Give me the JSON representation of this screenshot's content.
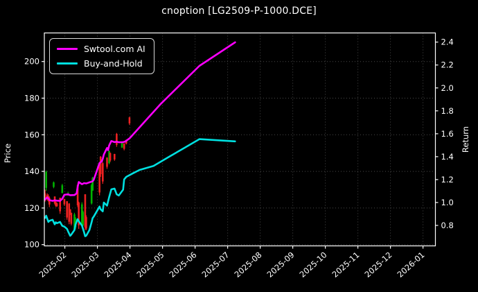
{
  "title": "cnoption [LG2509-P-1000.DCE]",
  "legend": {
    "items": [
      {
        "label": "Swtool.com AI",
        "color": "#ff00ff"
      },
      {
        "label": "Buy-and-Hold",
        "color": "#00e0e0"
      }
    ]
  },
  "colors": {
    "background": "#000000",
    "foreground": "#ffffff",
    "grid": "#4a4a4a",
    "candle_up": "#00b300",
    "candle_down": "#ee2222",
    "ai_line": "#ff00ff",
    "hold_line": "#00e0e0"
  },
  "chart_data": {
    "type": "line+candlestick",
    "title": "cnoption [LG2509-P-1000.DCE]",
    "ylabel_left": "Price",
    "ylabel_right": "Return",
    "grid": "dotted",
    "legend_position": "upper-left",
    "x_tick_labels": [
      "2025-02",
      "2025-03",
      "2025-04",
      "2025-05",
      "2025-06",
      "2025-07",
      "2025-08",
      "2025-09",
      "2025-10",
      "2025-11",
      "2025-12",
      "2026-01"
    ],
    "price_ticks": [
      100,
      120,
      140,
      160,
      180,
      200
    ],
    "return_ticks": [
      0.8,
      1.0,
      1.2,
      1.4,
      1.6,
      1.8,
      2.0,
      2.2,
      2.4
    ],
    "series": [
      {
        "name": "Swtool.com AI",
        "color": "#ff00ff",
        "points": [
          [
            "2025-01-13",
            124.6
          ],
          [
            "2025-01-14",
            125.3
          ],
          [
            "2025-01-15",
            125.8
          ],
          [
            "2025-01-16",
            125.2
          ],
          [
            "2025-01-17",
            124.3
          ],
          [
            "2025-01-20",
            123.9
          ],
          [
            "2025-01-22",
            124.2
          ],
          [
            "2025-01-24",
            124.0
          ],
          [
            "2025-01-27",
            123.9
          ],
          [
            "2025-01-29",
            125.0
          ],
          [
            "2025-01-31",
            127.2
          ],
          [
            "2025-02-04",
            127.5
          ],
          [
            "2025-02-06",
            127.0
          ],
          [
            "2025-02-10",
            127.1
          ],
          [
            "2025-02-12",
            128.0
          ],
          [
            "2025-02-13",
            131.5
          ],
          [
            "2025-02-14",
            134.2
          ],
          [
            "2025-02-17",
            133.0
          ],
          [
            "2025-02-19",
            133.6
          ],
          [
            "2025-02-21",
            133.4
          ],
          [
            "2025-02-25",
            134.2
          ],
          [
            "2025-02-27",
            134.6
          ],
          [
            "2025-02-28",
            135.4
          ],
          [
            "2025-03-03",
            144.6
          ],
          [
            "2025-03-05",
            145.4
          ],
          [
            "2025-03-06",
            146.8
          ],
          [
            "2025-03-07",
            149.2
          ],
          [
            "2025-03-10",
            152.8
          ],
          [
            "2025-03-11",
            151.6
          ],
          [
            "2025-03-12",
            154.2
          ],
          [
            "2025-03-14",
            156.6
          ],
          [
            "2025-03-17",
            156.0
          ],
          [
            "2025-03-19",
            156.2
          ],
          [
            "2025-03-21",
            155.9
          ],
          [
            "2025-03-25",
            156.0
          ],
          [
            "2025-03-27",
            156.3
          ],
          [
            "2025-03-31",
            158.0
          ],
          [
            "2025-04-30",
            177.0
          ],
          [
            "2025-06-05",
            197.6
          ],
          [
            "2025-07-08",
            210.5
          ]
        ]
      },
      {
        "name": "Buy-and-Hold",
        "color": "#00e0e0",
        "points": [
          [
            "2025-01-13",
            114.6
          ],
          [
            "2025-01-14",
            115.8
          ],
          [
            "2025-01-16",
            112.4
          ],
          [
            "2025-01-17",
            113.0
          ],
          [
            "2025-01-20",
            113.6
          ],
          [
            "2025-01-22",
            111.1
          ],
          [
            "2025-01-23",
            112.2
          ],
          [
            "2025-01-24",
            111.7
          ],
          [
            "2025-01-27",
            112.4
          ],
          [
            "2025-01-29",
            110.3
          ],
          [
            "2025-01-31",
            109.8
          ],
          [
            "2025-02-03",
            108.6
          ],
          [
            "2025-02-04",
            107.3
          ],
          [
            "2025-02-06",
            104.8
          ],
          [
            "2025-02-07",
            105.5
          ],
          [
            "2025-02-10",
            108.0
          ],
          [
            "2025-02-11",
            111.0
          ],
          [
            "2025-02-13",
            113.9
          ],
          [
            "2025-02-14",
            112.8
          ],
          [
            "2025-02-17",
            110.4
          ],
          [
            "2025-02-19",
            106.7
          ],
          [
            "2025-02-20",
            104.6
          ],
          [
            "2025-02-21",
            104.9
          ],
          [
            "2025-02-24",
            108.0
          ],
          [
            "2025-02-26",
            112.2
          ],
          [
            "2025-02-27",
            114.5
          ],
          [
            "2025-02-28",
            115.3
          ],
          [
            "2025-03-03",
            120.8
          ],
          [
            "2025-03-04",
            119.3
          ],
          [
            "2025-03-06",
            118.2
          ],
          [
            "2025-03-07",
            123.0
          ],
          [
            "2025-03-10",
            121.3
          ],
          [
            "2025-03-12",
            126.0
          ],
          [
            "2025-03-14",
            130.2
          ],
          [
            "2025-03-17",
            130.6
          ],
          [
            "2025-03-19",
            127.5
          ],
          [
            "2025-03-21",
            126.8
          ],
          [
            "2025-03-25",
            130.0
          ],
          [
            "2025-03-26",
            135.6
          ],
          [
            "2025-03-28",
            137.0
          ],
          [
            "2025-04-04",
            139.0
          ],
          [
            "2025-04-10",
            140.8
          ],
          [
            "2025-04-23",
            143.0
          ],
          [
            "2025-05-08",
            148.3
          ],
          [
            "2025-05-22",
            153.0
          ],
          [
            "2025-06-05",
            157.6
          ],
          [
            "2025-07-08",
            156.4
          ]
        ]
      }
    ],
    "candles": [
      {
        "d": "2025-01-13",
        "o": 128.0,
        "h": 130.0,
        "l": 123.5,
        "c": 124.5
      },
      {
        "d": "2025-01-14",
        "o": 131.0,
        "h": 140.4,
        "l": 129.4,
        "c": 139.8
      },
      {
        "d": "2025-01-15",
        "o": 127.0,
        "h": 128.0,
        "l": 124.0,
        "c": 125.0
      },
      {
        "d": "2025-01-16",
        "o": 126.5,
        "h": 127.5,
        "l": 123.5,
        "c": 124.2
      },
      {
        "d": "2025-01-17",
        "o": 125.6,
        "h": 126.3,
        "l": 120.5,
        "c": 121.9
      },
      {
        "d": "2025-01-21",
        "o": 131.5,
        "h": 134.5,
        "l": 130.8,
        "c": 134.0
      },
      {
        "d": "2025-01-22",
        "o": 126.3,
        "h": 126.3,
        "l": 121.9,
        "c": 122.5
      },
      {
        "d": "2025-01-23",
        "o": 123.1,
        "h": 123.5,
        "l": 120.6,
        "c": 121.2
      },
      {
        "d": "2025-01-24",
        "o": 122.5,
        "h": 123.0,
        "l": 120.6,
        "c": 121.0
      },
      {
        "d": "2025-01-27",
        "o": 125.6,
        "h": 125.6,
        "l": 116.8,
        "c": 118.2
      },
      {
        "d": "2025-01-29",
        "o": 128.1,
        "h": 133.2,
        "l": 128.1,
        "c": 132.4
      },
      {
        "d": "2025-01-31",
        "o": 125.0,
        "h": 125.0,
        "l": 121.2,
        "c": 122.0
      },
      {
        "d": "2025-02-03",
        "o": 123.7,
        "h": 123.7,
        "l": 113.6,
        "c": 114.8
      },
      {
        "d": "2025-02-04",
        "o": 127.0,
        "h": 128.9,
        "l": 126.9,
        "c": 127.3
      },
      {
        "d": "2025-02-05",
        "o": 122.5,
        "h": 122.5,
        "l": 111.1,
        "c": 112.5
      },
      {
        "d": "2025-02-06",
        "o": 119.3,
        "h": 119.3,
        "l": 116.2,
        "c": 117.0
      },
      {
        "d": "2025-02-07",
        "o": 117.4,
        "h": 117.4,
        "l": 110.5,
        "c": 111.4
      },
      {
        "d": "2025-02-10",
        "o": 108.0,
        "h": 117.4,
        "l": 107.3,
        "c": 116.5
      },
      {
        "d": "2025-02-11",
        "o": 109.5,
        "h": 115.0,
        "l": 108.5,
        "c": 114.3
      },
      {
        "d": "2025-02-13",
        "o": 132.5,
        "h": 133.2,
        "l": 120.5,
        "c": 121.5
      },
      {
        "d": "2025-02-14",
        "o": 123.0,
        "h": 123.5,
        "l": 108.6,
        "c": 110.5
      },
      {
        "d": "2025-02-17",
        "o": 111.0,
        "h": 123.1,
        "l": 110.5,
        "c": 122.0
      },
      {
        "d": "2025-02-18",
        "o": 110.5,
        "h": 118.5,
        "l": 110.0,
        "c": 117.8
      },
      {
        "d": "2025-02-20",
        "o": 127.5,
        "h": 127.5,
        "l": 108.0,
        "c": 109.5
      },
      {
        "d": "2025-02-21",
        "o": 115.0,
        "h": 116.0,
        "l": 107.9,
        "c": 108.8
      },
      {
        "d": "2025-02-26",
        "o": 122.5,
        "h": 133.2,
        "l": 121.9,
        "c": 132.5
      },
      {
        "d": "2025-02-27",
        "o": 129.5,
        "h": 137.0,
        "l": 129.4,
        "c": 136.5
      },
      {
        "d": "2025-03-03",
        "o": 144.0,
        "h": 144.6,
        "l": 126.9,
        "c": 128.5
      },
      {
        "d": "2025-03-04",
        "o": 148.0,
        "h": 148.4,
        "l": 137.0,
        "c": 138.5
      },
      {
        "d": "2025-03-06",
        "o": 144.5,
        "h": 145.2,
        "l": 133.2,
        "c": 134.5
      },
      {
        "d": "2025-03-10",
        "o": 147.5,
        "h": 147.7,
        "l": 141.4,
        "c": 142.5
      },
      {
        "d": "2025-03-12",
        "o": 144.5,
        "h": 151.5,
        "l": 143.9,
        "c": 151.0
      },
      {
        "d": "2025-03-13",
        "o": 150.0,
        "h": 150.3,
        "l": 145.2,
        "c": 146.0
      },
      {
        "d": "2025-03-17",
        "o": 149.5,
        "h": 149.6,
        "l": 145.8,
        "c": 146.5
      },
      {
        "d": "2025-03-19",
        "o": 160.5,
        "h": 161.0,
        "l": 153.4,
        "c": 154.5
      },
      {
        "d": "2025-03-24",
        "o": 153.0,
        "h": 156.0,
        "l": 152.8,
        "c": 155.7
      },
      {
        "d": "2025-03-26",
        "o": 155.3,
        "h": 155.3,
        "l": 151.5,
        "c": 152.3
      },
      {
        "d": "2025-03-28",
        "o": 157.2,
        "h": 157.2,
        "l": 154.7,
        "c": 155.2
      },
      {
        "d": "2025-03-31",
        "o": 169.5,
        "h": 169.8,
        "l": 165.4,
        "c": 166.2
      }
    ]
  }
}
